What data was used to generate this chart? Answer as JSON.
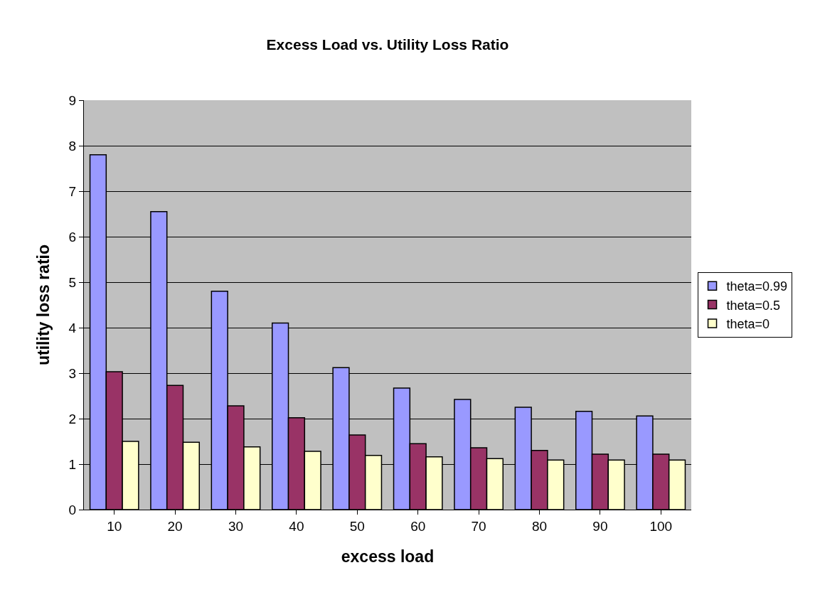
{
  "chart_data": {
    "type": "bar",
    "title": "Excess Load vs. Utility Loss Ratio",
    "xlabel": "excess load",
    "ylabel": "utility loss ratio",
    "categories": [
      "10",
      "20",
      "30",
      "40",
      "50",
      "60",
      "70",
      "80",
      "90",
      "100"
    ],
    "series": [
      {
        "name": "theta=0.99",
        "color": "#9999ff",
        "values": [
          7.8,
          6.55,
          4.8,
          4.1,
          3.12,
          2.67,
          2.42,
          2.25,
          2.16,
          2.06
        ]
      },
      {
        "name": "theta=0.5",
        "color": "#993366",
        "values": [
          3.03,
          2.73,
          2.28,
          2.02,
          1.64,
          1.45,
          1.36,
          1.3,
          1.22,
          1.22
        ]
      },
      {
        "name": "theta=0",
        "color": "#ffffcc",
        "values": [
          1.5,
          1.48,
          1.38,
          1.28,
          1.19,
          1.16,
          1.12,
          1.09,
          1.09,
          1.09
        ]
      }
    ],
    "ylim": [
      0,
      9
    ],
    "yticks": [
      0,
      1,
      2,
      3,
      4,
      5,
      6,
      7,
      8,
      9
    ],
    "grid": "y",
    "legend": "right"
  }
}
